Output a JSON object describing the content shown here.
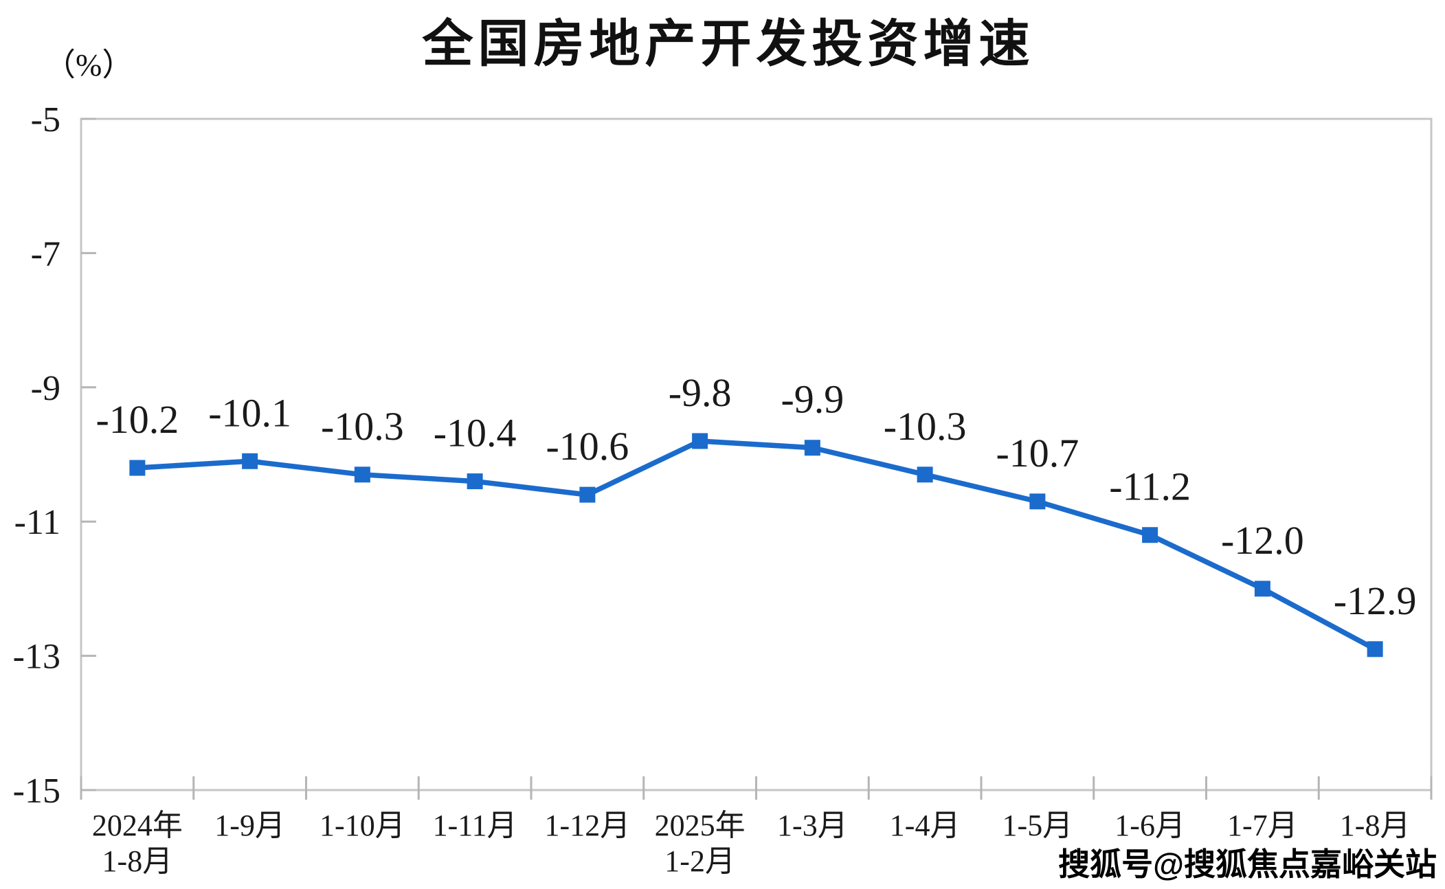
{
  "title": "全国房地产开发投资增速",
  "unit_label": "（%）",
  "watermark": "搜狐号@搜狐焦点嘉峪关站",
  "chart_data": {
    "type": "line",
    "title": "全国房地产开发投资增速",
    "ylabel": "（%）",
    "categories": [
      [
        "2024年",
        "1-8月"
      ],
      [
        "1-9月"
      ],
      [
        "1-10月"
      ],
      [
        "1-11月"
      ],
      [
        "1-12月"
      ],
      [
        "2025年",
        "1-2月"
      ],
      [
        "1-3月"
      ],
      [
        "1-4月"
      ],
      [
        "1-5月"
      ],
      [
        "1-6月"
      ],
      [
        "1-7月"
      ],
      [
        "1-8月"
      ]
    ],
    "values": [
      -10.2,
      -10.1,
      -10.3,
      -10.4,
      -10.6,
      -9.8,
      -9.9,
      -10.3,
      -10.7,
      -11.2,
      -12.0,
      -12.9
    ],
    "value_labels": [
      "-10.2",
      "-10.1",
      "-10.3",
      "-10.4",
      "-10.6",
      "-9.8",
      "-9.9",
      "-10.3",
      "-10.7",
      "-11.2",
      "-12.0",
      "-12.9"
    ],
    "ylim": [
      -15,
      -5
    ],
    "yticks": [
      -5,
      -7,
      -9,
      -11,
      -13,
      -15
    ],
    "ytick_labels": [
      "-5",
      "-7",
      "-9",
      "-11",
      "-13",
      "-15"
    ],
    "grid": false,
    "legend": "none",
    "marker": "square",
    "colors": {
      "line": "#1b6bcd",
      "marker": "#1b6bcd",
      "axis": "#c6c6c6",
      "tick": "#b5b5b5",
      "text": "#1a1a1a"
    }
  }
}
